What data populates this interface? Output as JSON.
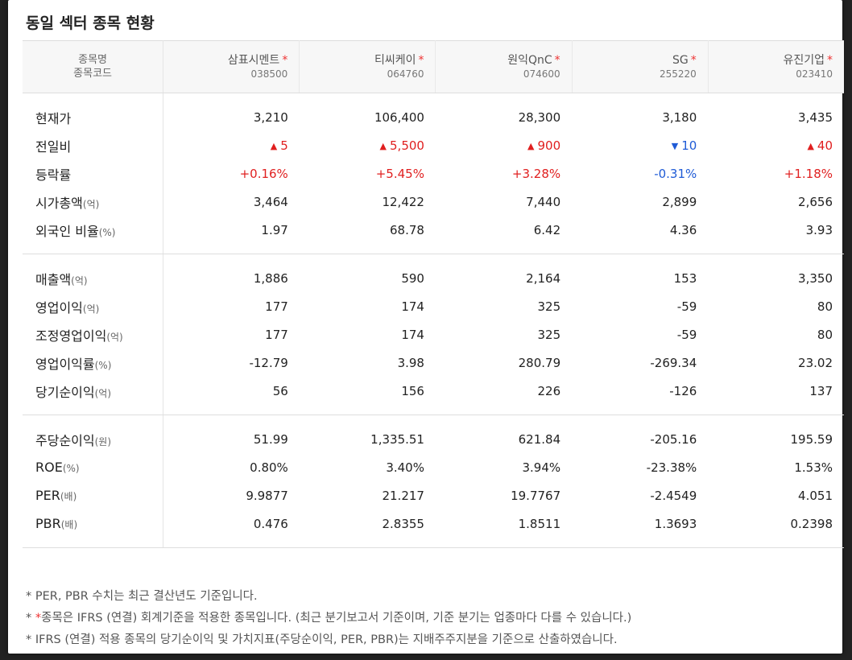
{
  "title": "동일 섹터 종목 현황",
  "header": {
    "name_label": "종목명",
    "code_label": "종목코드",
    "star": "*"
  },
  "columns": [
    {
      "name": "삼표시멘트",
      "code": "038500"
    },
    {
      "name": "티씨케이",
      "code": "064760"
    },
    {
      "name": "원익QnC",
      "code": "074600"
    },
    {
      "name": "SG",
      "code": "255220"
    },
    {
      "name": "유진기업",
      "code": "023410"
    }
  ],
  "colors": {
    "up": "#e01f1f",
    "down": "#1f5bd6",
    "star": "#e33333"
  },
  "sections": [
    {
      "rows": [
        {
          "label": "현재가",
          "unit": "",
          "values": [
            "3,210",
            "106,400",
            "28,300",
            "3,180",
            "3,435"
          ]
        },
        {
          "label": "전일비",
          "unit": "",
          "type": "change",
          "values": [
            {
              "dir": "up",
              "icon": "▲",
              "text": "5"
            },
            {
              "dir": "up",
              "icon": "▲",
              "text": "5,500"
            },
            {
              "dir": "up",
              "icon": "▲",
              "text": "900"
            },
            {
              "dir": "down",
              "icon": "▼",
              "text": "10"
            },
            {
              "dir": "up",
              "icon": "▲",
              "text": "40"
            }
          ]
        },
        {
          "label": "등락률",
          "unit": "",
          "type": "rate",
          "values": [
            {
              "dir": "up",
              "text": "+0.16%"
            },
            {
              "dir": "up",
              "text": "+5.45%"
            },
            {
              "dir": "up",
              "text": "+3.28%"
            },
            {
              "dir": "down",
              "text": "-0.31%"
            },
            {
              "dir": "up",
              "text": "+1.18%"
            }
          ]
        },
        {
          "label": "시가총액",
          "unit": "(억)",
          "values": [
            "3,464",
            "12,422",
            "7,440",
            "2,899",
            "2,656"
          ]
        },
        {
          "label": "외국인 비율",
          "unit": "(%)",
          "values": [
            "1.97",
            "68.78",
            "6.42",
            "4.36",
            "3.93"
          ]
        }
      ]
    },
    {
      "rows": [
        {
          "label": "매출액",
          "unit": "(억)",
          "values": [
            "1,886",
            "590",
            "2,164",
            "153",
            "3,350"
          ]
        },
        {
          "label": "영업이익",
          "unit": "(억)",
          "values": [
            "177",
            "174",
            "325",
            "-59",
            "80"
          ]
        },
        {
          "label": "조정영업이익",
          "unit": "(억)",
          "values": [
            "177",
            "174",
            "325",
            "-59",
            "80"
          ]
        },
        {
          "label": "영업이익률",
          "unit": "(%)",
          "values": [
            "-12.79",
            "3.98",
            "280.79",
            "-269.34",
            "23.02"
          ]
        },
        {
          "label": "당기순이익",
          "unit": "(억)",
          "values": [
            "56",
            "156",
            "226",
            "-126",
            "137"
          ]
        }
      ]
    },
    {
      "rows": [
        {
          "label": "주당순이익",
          "unit": "(원)",
          "values": [
            "51.99",
            "1,335.51",
            "621.84",
            "-205.16",
            "195.59"
          ]
        },
        {
          "label": "ROE",
          "unit": "(%)",
          "values": [
            "0.80%",
            "3.40%",
            "3.94%",
            "-23.38%",
            "1.53%"
          ]
        },
        {
          "label": "PER",
          "unit": "(배)",
          "values": [
            "9.9877",
            "21.217",
            "19.7767",
            "-2.4549",
            "4.051"
          ]
        },
        {
          "label": "PBR",
          "unit": "(배)",
          "values": [
            "0.476",
            "2.8355",
            "1.8511",
            "1.3693",
            "0.2398"
          ]
        }
      ]
    }
  ],
  "notes": {
    "n1": "* PER, PBR 수치는 최근 결산년도 기준입니다.",
    "n2_prefix": "* ",
    "n2_red": "*",
    "n2_text": "종목은 IFRS (연결) 회계기준을 적용한 종목입니다. (최근 분기보고서 기준이며, 기준 분기는 업종마다 다를 수 있습니다.)",
    "n3": "* IFRS (연결) 적용 종목의 당기순이익 및 가치지표(주당순이익, PER, PBR)는 지배주주지분을 기준으로 산출하였습니다."
  }
}
